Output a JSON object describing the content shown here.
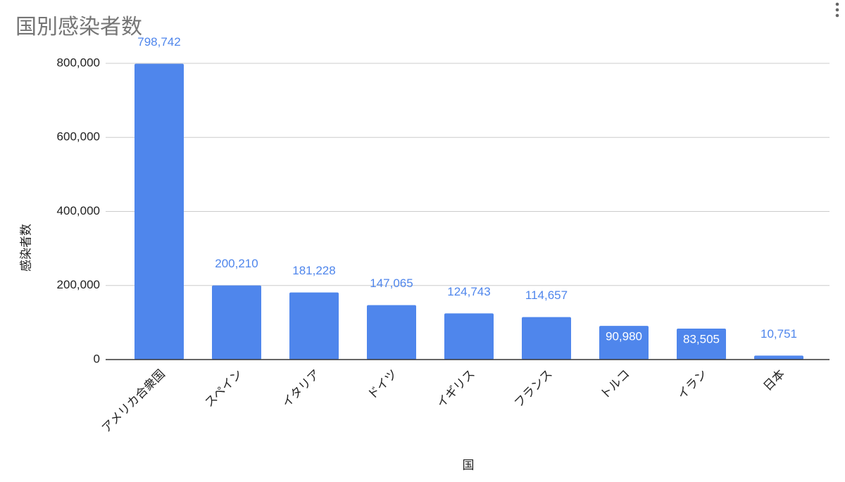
{
  "chart_data": {
    "type": "bar",
    "title": "国別感染者数",
    "x_label": "国",
    "y_label": "感染者数",
    "categories": [
      "アメリカ合衆国",
      "スペイン",
      "イタリア",
      "ドイツ",
      "イギリス",
      "フランス",
      "トルコ",
      "イラン",
      "日本"
    ],
    "values": [
      798742,
      200210,
      181228,
      147065,
      124743,
      114657,
      90980,
      83505,
      10751
    ],
    "value_labels": [
      "798,742",
      "200,210",
      "181,228",
      "147,065",
      "124,743",
      "114,657",
      "90,980",
      "83,505",
      "10,751"
    ],
    "color": "#4f86ec",
    "ylim": [
      0,
      800000
    ],
    "yticks": [
      0,
      {
        "value": 200000,
        "label": "200,000"
      },
      {
        "value": 400000,
        "label": "400,000"
      },
      {
        "value": 600000,
        "label": "600,000"
      },
      {
        "value": 800000,
        "label": "800,000"
      }
    ],
    "grid": true
  }
}
